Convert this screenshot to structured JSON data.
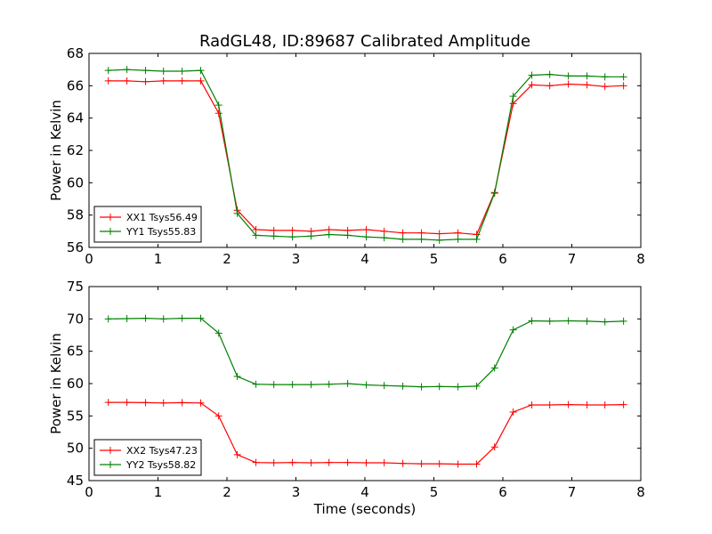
{
  "figure_title": "RadGL48, ID:89687 Calibrated Amplitude",
  "colors": {
    "red": "#ff0000",
    "green": "#008000"
  },
  "chart_data": [
    {
      "type": "line",
      "title": "RadGL48, ID:89687 Calibrated Amplitude",
      "xlabel": "",
      "ylabel": "Power in Kelvin",
      "xlim": [
        0,
        8
      ],
      "ylim": [
        56,
        68
      ],
      "xticks": [
        "0",
        "1",
        "2",
        "3",
        "4",
        "5",
        "6",
        "7",
        "8"
      ],
      "yticks": [
        "56",
        "58",
        "60",
        "62",
        "64",
        "66",
        "68"
      ],
      "grid": false,
      "legend_position": "lower-left",
      "x": [
        0.28,
        0.55,
        0.82,
        1.08,
        1.35,
        1.62,
        1.88,
        2.15,
        2.42,
        2.68,
        2.95,
        3.22,
        3.48,
        3.75,
        4.02,
        4.28,
        4.55,
        4.82,
        5.08,
        5.35,
        5.62,
        5.88,
        6.15,
        6.42,
        6.68,
        6.95,
        7.22,
        7.48,
        7.75
      ],
      "series": [
        {
          "name": "XX1 Tsys56.49",
          "color": "#ff0000",
          "values": [
            66.3,
            66.3,
            66.25,
            66.3,
            66.3,
            66.3,
            64.3,
            58.3,
            57.1,
            57.05,
            57.05,
            57.0,
            57.1,
            57.05,
            57.1,
            57.0,
            56.9,
            56.9,
            56.85,
            56.9,
            56.8,
            59.4,
            64.9,
            66.05,
            66.0,
            66.1,
            66.05,
            65.95,
            66.0
          ]
        },
        {
          "name": "YY1 Tsys55.83",
          "color": "#008000",
          "values": [
            66.95,
            67.0,
            66.95,
            66.9,
            66.9,
            66.95,
            64.8,
            58.1,
            56.75,
            56.7,
            56.65,
            56.7,
            56.8,
            56.75,
            56.65,
            56.6,
            56.5,
            56.5,
            56.45,
            56.5,
            56.5,
            59.35,
            65.35,
            66.65,
            66.7,
            66.6,
            66.6,
            66.55,
            66.55
          ]
        }
      ]
    },
    {
      "type": "line",
      "title": "",
      "xlabel": "Time (seconds)",
      "ylabel": "Power in Kelvin",
      "xlim": [
        0,
        8
      ],
      "ylim": [
        45,
        75
      ],
      "xticks": [
        "0",
        "1",
        "2",
        "3",
        "4",
        "5",
        "6",
        "7",
        "8"
      ],
      "yticks": [
        "45",
        "50",
        "55",
        "60",
        "65",
        "70",
        "75"
      ],
      "grid": false,
      "legend_position": "lower-left",
      "x": [
        0.28,
        0.55,
        0.82,
        1.08,
        1.35,
        1.62,
        1.88,
        2.15,
        2.42,
        2.68,
        2.95,
        3.22,
        3.48,
        3.75,
        4.02,
        4.28,
        4.55,
        4.82,
        5.08,
        5.35,
        5.62,
        5.88,
        6.15,
        6.42,
        6.68,
        6.95,
        7.22,
        7.48,
        7.75
      ],
      "series": [
        {
          "name": "XX2 Tsys47.23",
          "color": "#ff0000",
          "values": [
            57.1,
            57.1,
            57.05,
            57.0,
            57.05,
            57.0,
            55.0,
            49.0,
            47.8,
            47.75,
            47.8,
            47.75,
            47.8,
            47.8,
            47.75,
            47.75,
            47.65,
            47.6,
            47.6,
            47.55,
            47.55,
            50.2,
            55.6,
            56.7,
            56.7,
            56.75,
            56.7,
            56.7,
            56.75
          ]
        },
        {
          "name": "YY2 Tsys58.82",
          "color": "#008000",
          "values": [
            70.0,
            70.05,
            70.1,
            70.0,
            70.1,
            70.1,
            67.8,
            61.1,
            59.9,
            59.85,
            59.85,
            59.85,
            59.9,
            60.0,
            59.8,
            59.7,
            59.6,
            59.5,
            59.55,
            59.5,
            59.6,
            62.4,
            68.3,
            69.7,
            69.65,
            69.7,
            69.65,
            69.55,
            69.65
          ]
        }
      ]
    }
  ]
}
